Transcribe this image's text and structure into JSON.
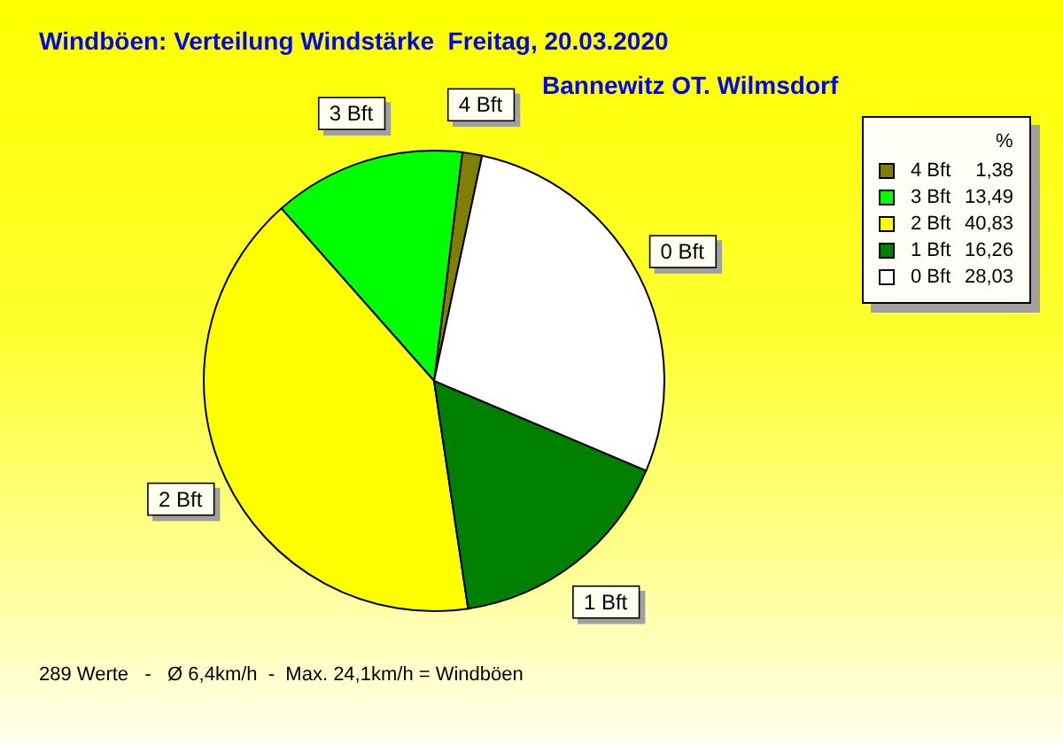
{
  "chart_data": {
    "type": "pie",
    "title": "Windböen: Verteilung Windstärke  Freitag, 20.03.2020",
    "subtitle": "Bannewitz OT. Wilmsdorf",
    "categories": [
      "4 Bft",
      "3 Bft",
      "2 Bft",
      "1 Bft",
      "0 Bft"
    ],
    "values": [
      1.38,
      13.49,
      40.83,
      16.26,
      28.03
    ],
    "value_labels": [
      "1,38",
      "13,49",
      "40,83",
      "16,26",
      "28,03"
    ],
    "colors": [
      "#808000",
      "#00ff00",
      "#ffff00",
      "#008000",
      "#ffffff"
    ],
    "legend": "top right",
    "legend_title": "%",
    "annotations": [
      "289 Werte   -   Ø 6,4km/h  -  Max. 24,1km/h = Windböen"
    ]
  }
}
